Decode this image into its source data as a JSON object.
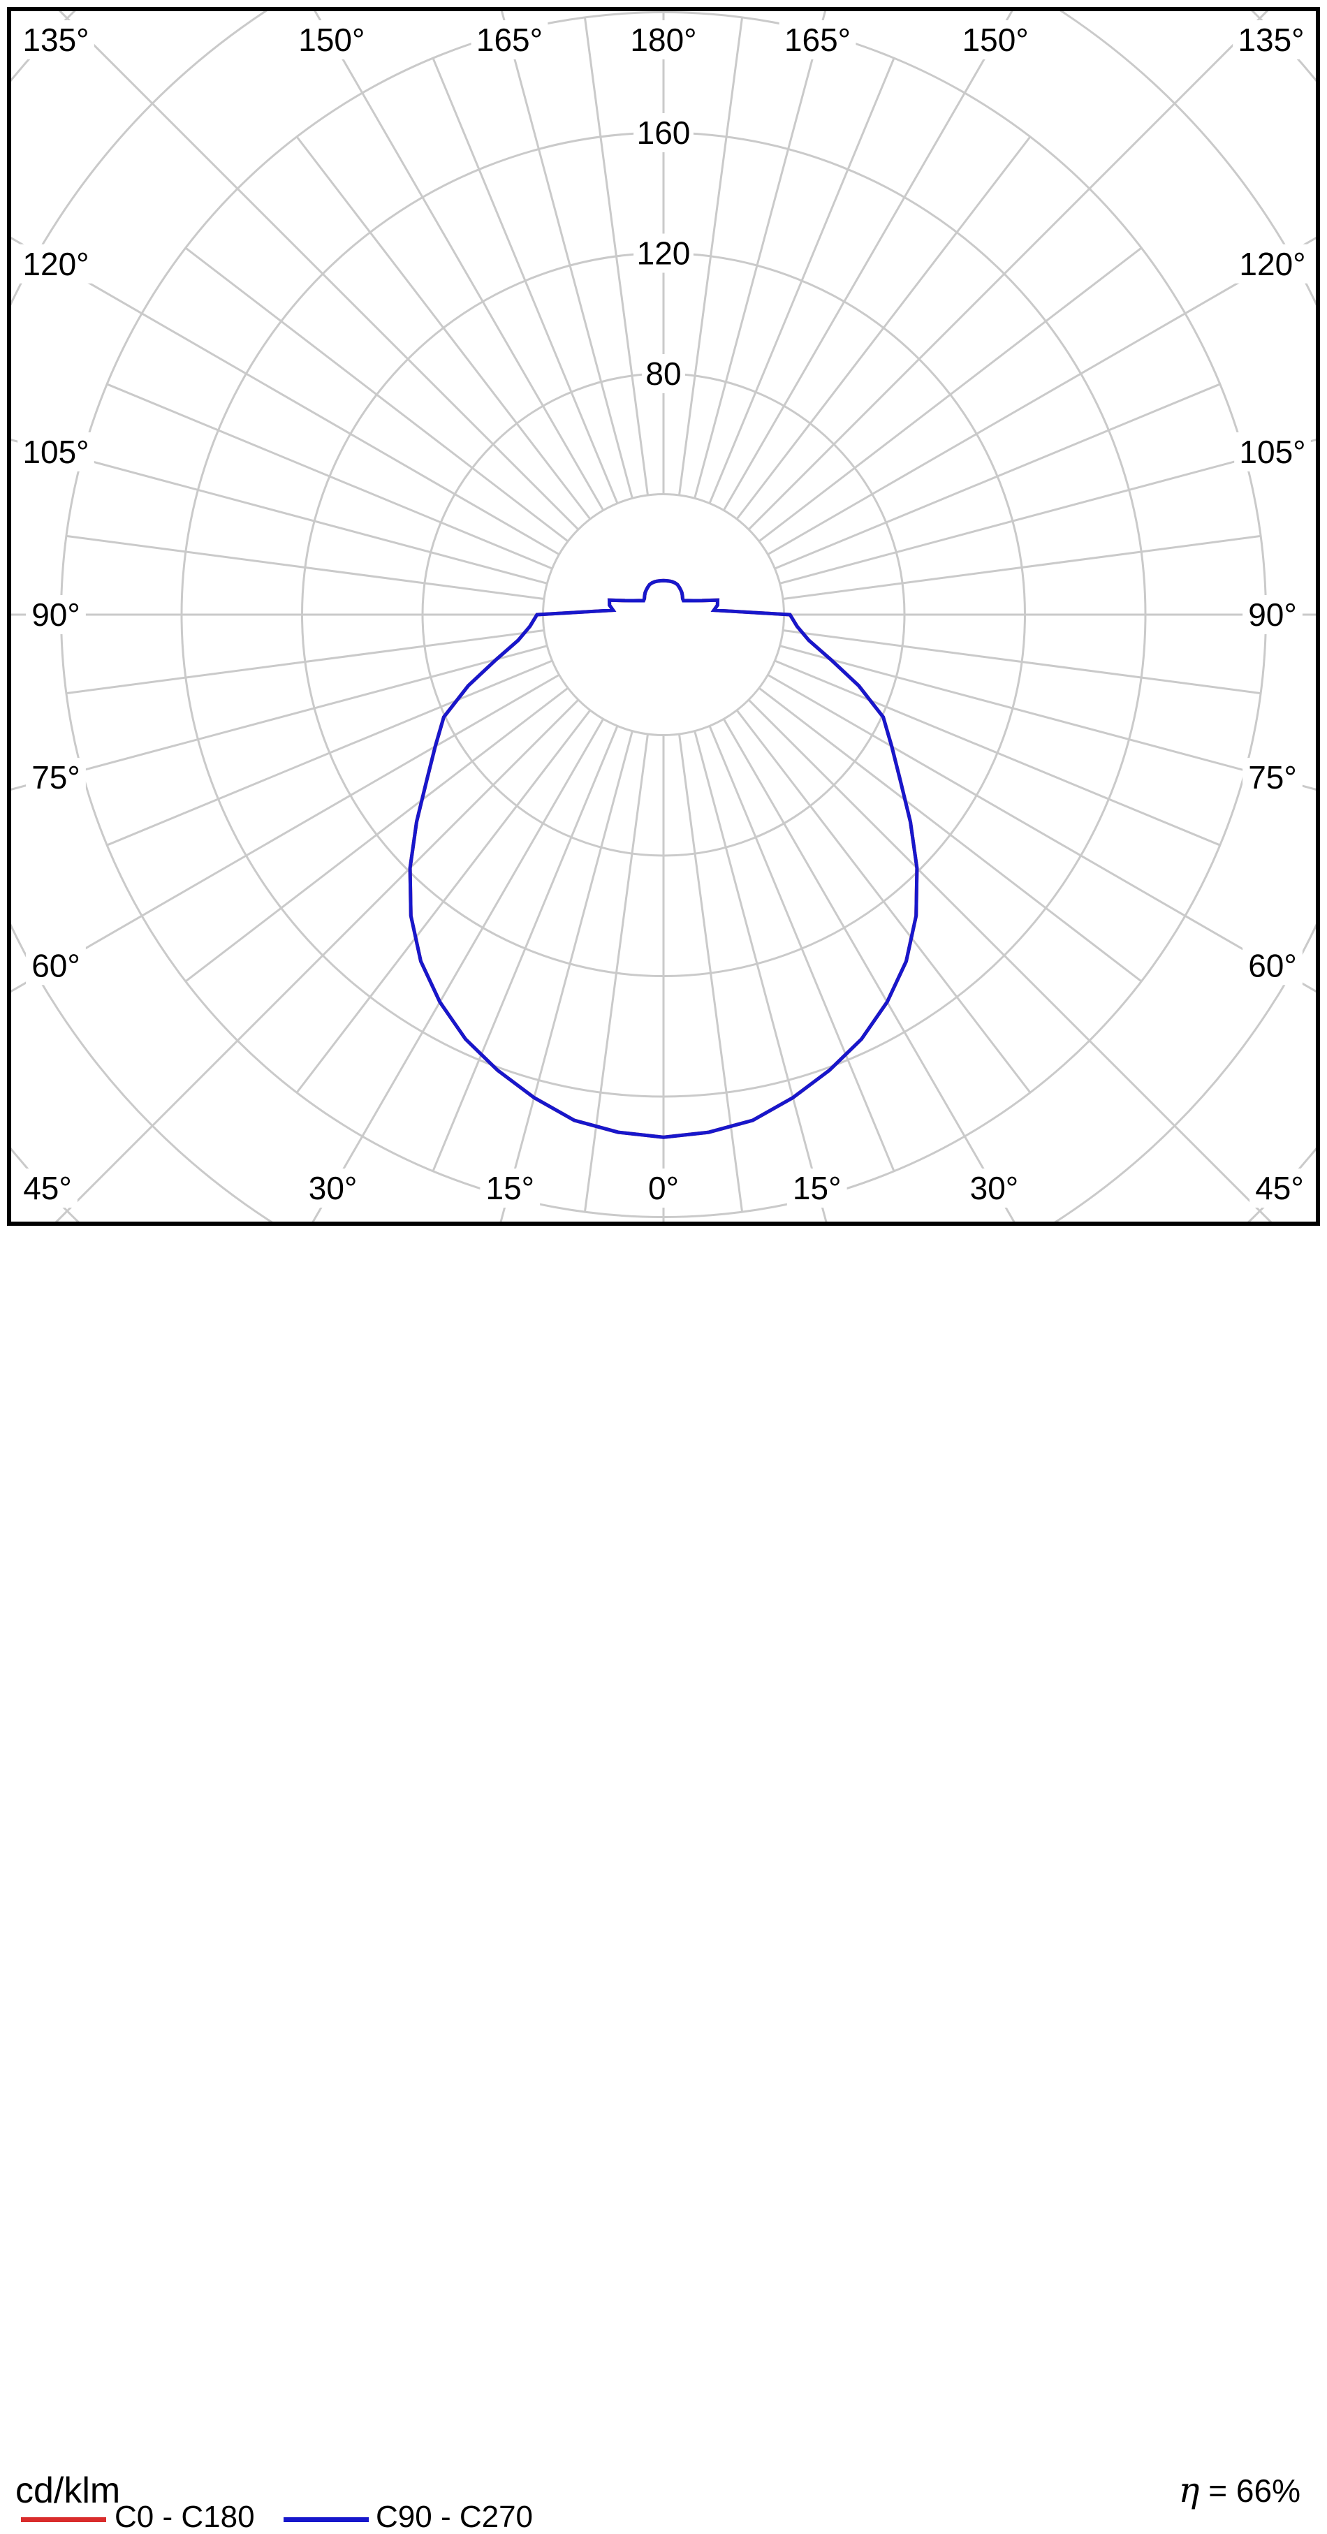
{
  "diagram": {
    "unit_label": "cd/klm",
    "efficiency": {
      "symbol": "η",
      "rest": " = 66%"
    },
    "legend": {
      "items": [
        {
          "label": "C0 - C180",
          "color": "#d92c2c"
        },
        {
          "label": "C90 - C270",
          "color": "#1717cb"
        }
      ]
    },
    "grid": {
      "color": "#cacaca",
      "border_color": "#000000",
      "text_color": "#000000",
      "background": "#ffffff",
      "rings_cd_klm": [
        40,
        80,
        120,
        160,
        200,
        240,
        280
      ],
      "labeled_rings": [
        "80",
        "120",
        "160"
      ],
      "minor_spoke_step_deg": 7.5,
      "major_spoke_step_deg": 15,
      "angle_labels": [
        "0°",
        "15°",
        "30°",
        "45°",
        "60°",
        "75°",
        "90°",
        "105°",
        "120°",
        "135°",
        "150°",
        "165°",
        "180°"
      ]
    }
  },
  "chart_data": {
    "type": "line",
    "coordinate_system": "polar-photometric",
    "title": "cd/klm",
    "annotation": "η = 66%",
    "legend_position": "bottom-left",
    "grid_on": true,
    "radial_axis": {
      "unit": "cd/klm",
      "ring_step": 40,
      "rings": [
        40,
        80,
        120,
        160,
        200,
        240,
        280
      ],
      "tick_labels": [
        80,
        120,
        160
      ]
    },
    "angular_axis": {
      "unit": "deg",
      "zero_at": "bottom",
      "label_step": 15,
      "minor_step": 7.5,
      "range": [
        0,
        180
      ],
      "mirrored": true
    },
    "gamma_deg": [
      0,
      5,
      10,
      15,
      20,
      25,
      30,
      35,
      40,
      45,
      50,
      55,
      60,
      65,
      70,
      75,
      80,
      85,
      90,
      95,
      100,
      105,
      110,
      115,
      120,
      125,
      130,
      135,
      140,
      145,
      150,
      155,
      160,
      165,
      170,
      175,
      180
    ],
    "series": [
      {
        "name": "C0 - C180",
        "color": "#d92c2c",
        "values": [
          173.5,
          172.5,
          170.5,
          166,
          161,
          155.5,
          148.5,
          140.5,
          130.5,
          119,
          107,
          96,
          87.5,
          80.5,
          69,
          57.5,
          49,
          44.5,
          42,
          16.8,
          18.2,
          18.6,
          13.6,
          11,
          9.3,
          8.1,
          8.3,
          8.9,
          9.5,
          10,
          10.5,
          11,
          11.2,
          11.3,
          11.3,
          11.3,
          11.3
        ]
      },
      {
        "name": "C90 - C270",
        "color": "#1717cb",
        "values": [
          173.5,
          172.5,
          170.5,
          166,
          161,
          155.5,
          148.5,
          140.5,
          130.5,
          119,
          107,
          96,
          87.5,
          80.5,
          69,
          57.5,
          49,
          44.5,
          42,
          16.8,
          18.2,
          18.6,
          13.6,
          11,
          9.3,
          8.1,
          8.3,
          8.9,
          9.5,
          10,
          10.5,
          11,
          11.2,
          11.3,
          11.3,
          11.3,
          11.3
        ]
      }
    ]
  }
}
